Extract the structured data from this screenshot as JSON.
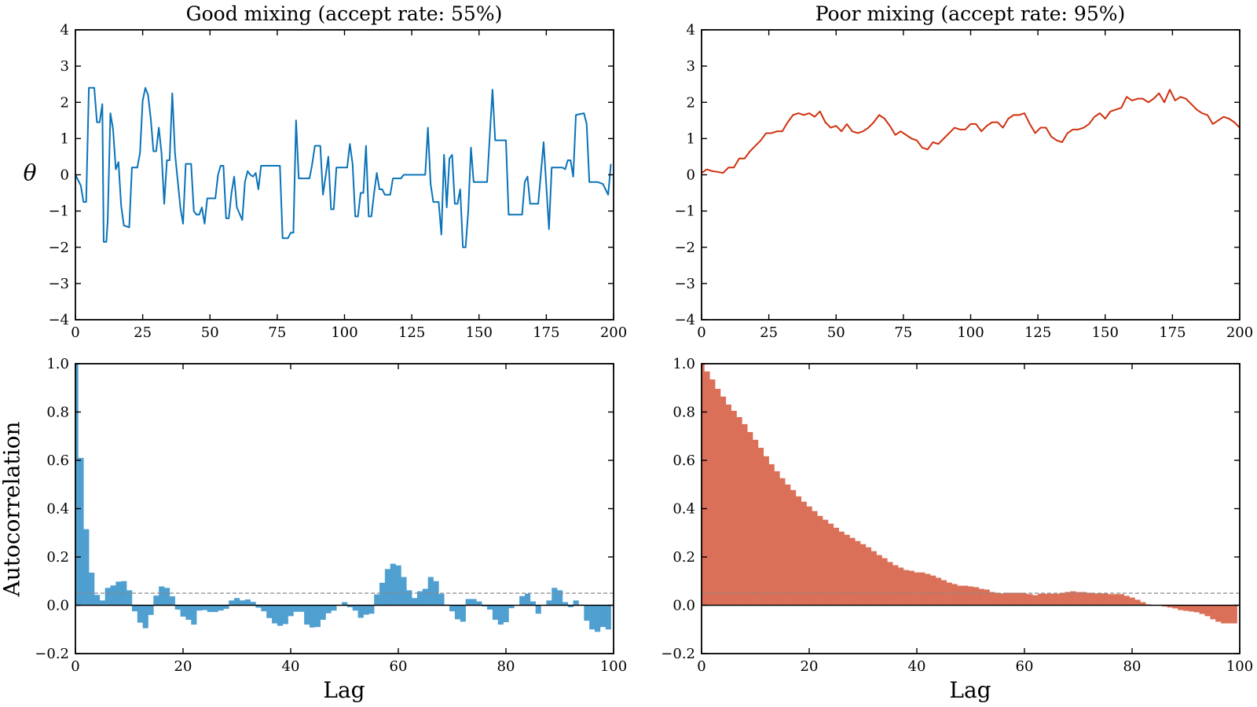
{
  "chart_data": [
    {
      "type": "line",
      "title": "Good mixing (accept rate: 55%)",
      "xlabel": "",
      "ylabel": "θ",
      "xlim": [
        0,
        200
      ],
      "ylim": [
        -4,
        4
      ],
      "xticks": [
        0,
        25,
        50,
        75,
        100,
        125,
        150,
        175,
        200
      ],
      "yticks": [
        -4,
        -3,
        -2,
        -1,
        0,
        1,
        2,
        3,
        4
      ],
      "grid": false,
      "color": "#0a73b8",
      "series": [
        {
          "points": [
            [
              0,
              0
            ],
            [
              2,
              -0.3
            ],
            [
              3,
              -0.75
            ],
            [
              4,
              -0.75
            ],
            [
              5,
              2.4
            ],
            [
              7,
              2.4
            ],
            [
              8,
              1.45
            ],
            [
              9,
              1.45
            ],
            [
              10,
              1.95
            ],
            [
              10.5,
              -1.85
            ],
            [
              11.5,
              -1.85
            ],
            [
              12,
              -1.25
            ],
            [
              13,
              1.7
            ],
            [
              14,
              1.25
            ],
            [
              15,
              0.15
            ],
            [
              16,
              0.35
            ],
            [
              17,
              -0.85
            ],
            [
              18,
              -1.4
            ],
            [
              20,
              -1.45
            ],
            [
              21,
              0.2
            ],
            [
              23,
              0.2
            ],
            [
              24,
              0.6
            ],
            [
              25,
              2.05
            ],
            [
              26,
              2.4
            ],
            [
              27,
              2.2
            ],
            [
              28,
              1.55
            ],
            [
              29,
              0.65
            ],
            [
              30,
              0.65
            ],
            [
              31,
              1.3
            ],
            [
              32,
              0.6
            ],
            [
              33,
              -0.8
            ],
            [
              34,
              0.4
            ],
            [
              35,
              0.4
            ],
            [
              36,
              2.25
            ],
            [
              37,
              0.6
            ],
            [
              39,
              -0.9
            ],
            [
              40,
              -1.35
            ],
            [
              41,
              0.3
            ],
            [
              43,
              0.3
            ],
            [
              44,
              -1.0
            ],
            [
              45,
              -1.1
            ],
            [
              46,
              -1.1
            ],
            [
              47,
              -0.9
            ],
            [
              48,
              -1.35
            ],
            [
              49,
              -0.65
            ],
            [
              52,
              -0.65
            ],
            [
              53,
              0.0
            ],
            [
              54,
              0.25
            ],
            [
              55,
              0.25
            ],
            [
              56,
              -1.2
            ],
            [
              57,
              -1.2
            ],
            [
              58,
              -0.5
            ],
            [
              59,
              -0.05
            ],
            [
              60,
              -0.9
            ],
            [
              62,
              -1.25
            ],
            [
              63,
              -0.2
            ],
            [
              64,
              0.1
            ],
            [
              65,
              0.0
            ],
            [
              66,
              -0.05
            ],
            [
              67,
              0.05
            ],
            [
              68,
              -0.4
            ],
            [
              69,
              0.25
            ],
            [
              76,
              0.25
            ],
            [
              77,
              -1.75
            ],
            [
              79,
              -1.75
            ],
            [
              80,
              -1.6
            ],
            [
              81,
              -1.6
            ],
            [
              82,
              1.5
            ],
            [
              83,
              -0.1
            ],
            [
              87,
              -0.1
            ],
            [
              88,
              0.3
            ],
            [
              89,
              0.8
            ],
            [
              91,
              0.8
            ],
            [
              92,
              -0.55
            ],
            [
              94,
              0.5
            ],
            [
              95,
              -0.95
            ],
            [
              96,
              -0.95
            ],
            [
              97,
              0.2
            ],
            [
              101,
              0.2
            ],
            [
              102,
              0.85
            ],
            [
              103,
              0.3
            ],
            [
              104,
              -1.15
            ],
            [
              105,
              -1.15
            ],
            [
              106,
              -0.5
            ],
            [
              107,
              -0.5
            ],
            [
              108,
              0.8
            ],
            [
              109,
              -1.15
            ],
            [
              110,
              -1.15
            ],
            [
              111,
              -0.5
            ],
            [
              112,
              0.05
            ],
            [
              113,
              -0.4
            ],
            [
              114,
              -0.4
            ],
            [
              115,
              -0.55
            ],
            [
              117,
              -0.55
            ],
            [
              118,
              -0.1
            ],
            [
              121,
              -0.1
            ],
            [
              122,
              0.0
            ],
            [
              130,
              0.0
            ],
            [
              131,
              1.3
            ],
            [
              132,
              -0.25
            ],
            [
              133,
              -0.75
            ],
            [
              135,
              -0.75
            ],
            [
              136,
              -1.65
            ],
            [
              137,
              0.55
            ],
            [
              138,
              -0.9
            ],
            [
              139,
              0.45
            ],
            [
              140,
              0.55
            ],
            [
              141,
              -0.8
            ],
            [
              142,
              -0.8
            ],
            [
              143,
              -0.4
            ],
            [
              144,
              -2.0
            ],
            [
              145,
              -2.0
            ],
            [
              146,
              -1.0
            ],
            [
              147,
              0.75
            ],
            [
              148,
              -0.2
            ],
            [
              153,
              -0.2
            ],
            [
              155,
              2.35
            ],
            [
              156,
              0.95
            ],
            [
              160,
              0.95
            ],
            [
              161,
              -1.1
            ],
            [
              166,
              -1.1
            ],
            [
              167,
              -0.2
            ],
            [
              168,
              -0.05
            ],
            [
              169,
              -0.8
            ],
            [
              172,
              -0.8
            ],
            [
              174,
              0.9
            ],
            [
              176,
              -1.5
            ],
            [
              177,
              0.2
            ],
            [
              181,
              0.2
            ],
            [
              182,
              0.15
            ],
            [
              183,
              0.4
            ],
            [
              184,
              0.4
            ],
            [
              185,
              -0.05
            ],
            [
              186,
              1.65
            ],
            [
              189,
              1.7
            ],
            [
              190,
              1.4
            ],
            [
              191,
              -0.2
            ],
            [
              194,
              -0.2
            ],
            [
              196,
              -0.25
            ],
            [
              198,
              -0.55
            ],
            [
              199,
              0.3
            ]
          ]
        }
      ]
    },
    {
      "type": "line",
      "title": "Poor mixing (accept rate: 95%)",
      "xlabel": "",
      "ylabel": "",
      "xlim": [
        0,
        200
      ],
      "ylim": [
        -4,
        4
      ],
      "xticks": [
        0,
        25,
        50,
        75,
        100,
        125,
        150,
        175,
        200
      ],
      "yticks": [
        -4,
        -3,
        -2,
        -1,
        0,
        1,
        2,
        3,
        4
      ],
      "grid": false,
      "color": "#d0300e",
      "series": [
        {
          "x_step": 2,
          "values": [
            0.05,
            0.15,
            0.1,
            0.08,
            0.05,
            0.2,
            0.2,
            0.45,
            0.45,
            0.65,
            0.8,
            0.95,
            1.15,
            1.15,
            1.2,
            1.2,
            1.45,
            1.65,
            1.7,
            1.65,
            1.7,
            1.6,
            1.75,
            1.45,
            1.3,
            1.35,
            1.2,
            1.4,
            1.2,
            1.15,
            1.2,
            1.3,
            1.45,
            1.65,
            1.55,
            1.35,
            1.1,
            1.2,
            1.1,
            1.0,
            0.95,
            0.75,
            0.7,
            0.9,
            0.85,
            1.0,
            1.15,
            1.3,
            1.25,
            1.25,
            1.4,
            1.4,
            1.2,
            1.35,
            1.45,
            1.45,
            1.3,
            1.55,
            1.65,
            1.65,
            1.7,
            1.4,
            1.15,
            1.3,
            1.3,
            1.05,
            0.95,
            0.9,
            1.15,
            1.25,
            1.25,
            1.3,
            1.4,
            1.6,
            1.7,
            1.55,
            1.75,
            1.8,
            1.85,
            2.15,
            2.05,
            2.1,
            2.1,
            2.0,
            2.1,
            2.25,
            2.0,
            2.35,
            2.05,
            2.15,
            2.1,
            1.95,
            1.8,
            1.7,
            1.65,
            1.4,
            1.5,
            1.6,
            1.55,
            1.45,
            1.3
          ]
        }
      ]
    },
    {
      "type": "bar",
      "title": "",
      "xlabel": "Lag",
      "ylabel": "Autocorrelation",
      "xlim": [
        0,
        100
      ],
      "ylim": [
        -0.2,
        1.0
      ],
      "xticks": [
        0,
        20,
        40,
        60,
        80,
        100
      ],
      "yticks": [
        -0.2,
        0.0,
        0.2,
        0.4,
        0.6,
        0.8,
        1.0
      ],
      "reference_line": 0.05,
      "grid": false,
      "color": "#4f9fd0",
      "values": [
        1.0,
        0.61,
        0.315,
        0.135,
        0.043,
        0.02,
        0.072,
        0.082,
        0.098,
        0.1,
        0.062,
        -0.025,
        -0.072,
        -0.095,
        -0.04,
        0.04,
        0.078,
        0.072,
        0.037,
        -0.018,
        -0.047,
        -0.06,
        -0.08,
        -0.022,
        -0.02,
        -0.028,
        -0.028,
        -0.022,
        -0.015,
        0.02,
        0.03,
        0.02,
        0.024,
        0.014,
        -0.01,
        -0.025,
        -0.053,
        -0.075,
        -0.085,
        -0.078,
        -0.045,
        -0.027,
        -0.027,
        -0.08,
        -0.092,
        -0.09,
        -0.06,
        -0.033,
        -0.022,
        0.002,
        0.013,
        -0.008,
        -0.022,
        -0.052,
        -0.039,
        -0.035,
        0.045,
        0.093,
        0.15,
        0.172,
        0.165,
        0.117,
        0.062,
        0.03,
        0.058,
        0.068,
        0.117,
        0.1,
        0.047,
        0.003,
        -0.025,
        -0.058,
        -0.068,
        0.026,
        0.026,
        0.016,
        -0.005,
        -0.018,
        -0.06,
        -0.08,
        -0.07,
        -0.012,
        0.0,
        0.038,
        0.048,
        0.016,
        -0.035,
        0.0,
        0.02,
        0.072,
        0.062,
        0.013,
        -0.008,
        0.02,
        0.003,
        -0.064,
        -0.1,
        -0.11,
        -0.09,
        -0.1
      ]
    },
    {
      "type": "bar",
      "title": "",
      "xlabel": "Lag",
      "ylabel": "",
      "xlim": [
        0,
        100
      ],
      "ylim": [
        -0.2,
        1.0
      ],
      "xticks": [
        0,
        20,
        40,
        60,
        80,
        100
      ],
      "yticks": [
        -0.2,
        0.0,
        0.2,
        0.4,
        0.6,
        0.8,
        1.0
      ],
      "reference_line": 0.05,
      "grid": false,
      "color": "#db7058",
      "values": [
        1.0,
        0.968,
        0.935,
        0.896,
        0.864,
        0.831,
        0.805,
        0.779,
        0.75,
        0.717,
        0.685,
        0.652,
        0.617,
        0.584,
        0.555,
        0.526,
        0.5,
        0.477,
        0.451,
        0.429,
        0.409,
        0.39,
        0.37,
        0.354,
        0.338,
        0.321,
        0.305,
        0.292,
        0.279,
        0.266,
        0.253,
        0.24,
        0.224,
        0.208,
        0.195,
        0.179,
        0.166,
        0.156,
        0.146,
        0.143,
        0.136,
        0.136,
        0.13,
        0.123,
        0.114,
        0.104,
        0.094,
        0.088,
        0.081,
        0.081,
        0.078,
        0.075,
        0.068,
        0.065,
        0.055,
        0.052,
        0.049,
        0.052,
        0.052,
        0.052,
        0.049,
        0.046,
        0.042,
        0.048,
        0.048,
        0.048,
        0.048,
        0.052,
        0.055,
        0.058,
        0.055,
        0.055,
        0.052,
        0.049,
        0.049,
        0.049,
        0.046,
        0.046,
        0.046,
        0.039,
        0.032,
        0.023,
        0.013,
        0.004,
        0.0,
        0.0,
        -0.005,
        -0.009,
        -0.013,
        -0.02,
        -0.023,
        -0.026,
        -0.029,
        -0.036,
        -0.045,
        -0.058,
        -0.068,
        -0.075,
        -0.075,
        -0.075
      ]
    }
  ]
}
